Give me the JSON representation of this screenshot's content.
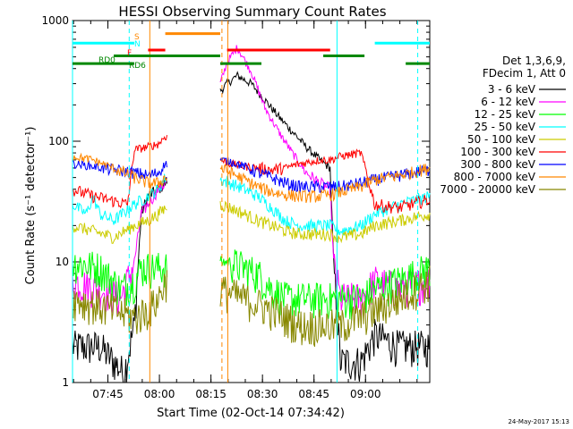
{
  "chart_data": {
    "type": "line",
    "title": "HESSI Observing Summary Count Rates",
    "xlabel": "Start Time (02-Oct-14 07:34:42)",
    "ylabel": "Count Rate (s⁻¹ detector⁻¹)",
    "yscale": "log",
    "ylim": [
      1,
      1000
    ],
    "xlim_minutes": [
      0,
      104
    ],
    "x_ticks": [
      {
        "label": "07:45",
        "t": 10.3
      },
      {
        "label": "08:00",
        "t": 25.3
      },
      {
        "label": "08:15",
        "t": 40.3
      },
      {
        "label": "08:30",
        "t": 55.3
      },
      {
        "label": "08:45",
        "t": 70.3
      },
      {
        "label": "09:00",
        "t": 85.3
      }
    ],
    "y_ticks": [
      {
        "label": "1",
        "v": 1
      },
      {
        "label": "10",
        "v": 10
      },
      {
        "label": "100",
        "v": 100
      },
      {
        "label": "1000",
        "v": 1000
      }
    ],
    "legend_header": [
      "Det 1,3,6,9,",
      "FDecim 1, Att 0"
    ],
    "series": [
      {
        "name": "3 - 6 keV",
        "color": "#000000",
        "points": [
          [
            0,
            2
          ],
          [
            8,
            2
          ],
          [
            12,
            1.5
          ],
          [
            15,
            1.2
          ],
          [
            18,
            3
          ],
          [
            20,
            25
          ],
          [
            22,
            35
          ],
          [
            25,
            40
          ],
          [
            27,
            45
          ],
          [
            43,
            260
          ],
          [
            45,
            300
          ],
          [
            48,
            350
          ],
          [
            52,
            300
          ],
          [
            56,
            220
          ],
          [
            60,
            160
          ],
          [
            64,
            120
          ],
          [
            68,
            90
          ],
          [
            72,
            70
          ],
          [
            75,
            60
          ],
          [
            76,
            10
          ],
          [
            78,
            1.5
          ],
          [
            84,
            1.5
          ],
          [
            88,
            2.5
          ],
          [
            95,
            2
          ],
          [
            104,
            2
          ]
        ]
      },
      {
        "name": "6 - 12 keV",
        "color": "#ff00ff",
        "points": [
          [
            0,
            7
          ],
          [
            8,
            6
          ],
          [
            14,
            5
          ],
          [
            18,
            10
          ],
          [
            20,
            25
          ],
          [
            22,
            30
          ],
          [
            25,
            40
          ],
          [
            27,
            45
          ],
          [
            43,
            300
          ],
          [
            45,
            450
          ],
          [
            48,
            600
          ],
          [
            52,
            380
          ],
          [
            56,
            190
          ],
          [
            60,
            120
          ],
          [
            64,
            80
          ],
          [
            68,
            55
          ],
          [
            72,
            45
          ],
          [
            75,
            40
          ],
          [
            76,
            10
          ],
          [
            78,
            5
          ],
          [
            84,
            5
          ],
          [
            88,
            7
          ],
          [
            95,
            6
          ],
          [
            104,
            7
          ]
        ]
      },
      {
        "name": "12 - 25 keV",
        "color": "#00ff00",
        "points": [
          [
            0,
            10
          ],
          [
            8,
            9
          ],
          [
            14,
            6
          ],
          [
            18,
            7
          ],
          [
            20,
            9
          ],
          [
            25,
            9
          ],
          [
            27,
            9
          ],
          [
            43,
            10
          ],
          [
            46,
            10
          ],
          [
            50,
            9
          ],
          [
            54,
            8
          ],
          [
            58,
            6
          ],
          [
            62,
            5
          ],
          [
            66,
            5
          ],
          [
            72,
            5
          ],
          [
            75,
            5
          ],
          [
            78,
            5
          ],
          [
            84,
            5
          ],
          [
            88,
            6
          ],
          [
            95,
            7
          ],
          [
            104,
            9
          ]
        ]
      },
      {
        "name": "25 - 50 keV",
        "color": "#00ffff",
        "points": [
          [
            0,
            30
          ],
          [
            4,
            25
          ],
          [
            6,
            35
          ],
          [
            8,
            25
          ],
          [
            12,
            22
          ],
          [
            18,
            30
          ],
          [
            22,
            35
          ],
          [
            25,
            40
          ],
          [
            27,
            50
          ],
          [
            43,
            48
          ],
          [
            46,
            45
          ],
          [
            50,
            40
          ],
          [
            54,
            35
          ],
          [
            58,
            28
          ],
          [
            62,
            22
          ],
          [
            66,
            20
          ],
          [
            72,
            20
          ],
          [
            75,
            20
          ],
          [
            78,
            18
          ],
          [
            84,
            20
          ],
          [
            88,
            25
          ],
          [
            95,
            30
          ],
          [
            104,
            35
          ]
        ]
      },
      {
        "name": "50 - 100 keV",
        "color": "#cccc00",
        "points": [
          [
            0,
            20
          ],
          [
            6,
            18
          ],
          [
            12,
            16
          ],
          [
            18,
            20
          ],
          [
            22,
            22
          ],
          [
            25,
            25
          ],
          [
            27,
            28
          ],
          [
            43,
            30
          ],
          [
            46,
            28
          ],
          [
            50,
            25
          ],
          [
            54,
            22
          ],
          [
            58,
            20
          ],
          [
            62,
            18
          ],
          [
            66,
            17
          ],
          [
            72,
            17
          ],
          [
            75,
            17
          ],
          [
            78,
            16
          ],
          [
            84,
            17
          ],
          [
            88,
            20
          ],
          [
            95,
            22
          ],
          [
            104,
            25
          ]
        ]
      },
      {
        "name": "100 - 300 keV",
        "color": "#ff0000",
        "points": [
          [
            0,
            40
          ],
          [
            6,
            35
          ],
          [
            12,
            32
          ],
          [
            16,
            30
          ],
          [
            18,
            85
          ],
          [
            22,
            90
          ],
          [
            25,
            95
          ],
          [
            27,
            110
          ],
          [
            43,
            70
          ],
          [
            46,
            65
          ],
          [
            50,
            62
          ],
          [
            54,
            60
          ],
          [
            58,
            58
          ],
          [
            62,
            60
          ],
          [
            66,
            65
          ],
          [
            72,
            70
          ],
          [
            75,
            70
          ],
          [
            78,
            75
          ],
          [
            84,
            80
          ],
          [
            88,
            30
          ],
          [
            95,
            28
          ],
          [
            104,
            33
          ]
        ]
      },
      {
        "name": "300 - 800 keV",
        "color": "#0000ff",
        "points": [
          [
            0,
            65
          ],
          [
            6,
            62
          ],
          [
            12,
            58
          ],
          [
            18,
            55
          ],
          [
            22,
            52
          ],
          [
            25,
            55
          ],
          [
            27,
            65
          ],
          [
            43,
            70
          ],
          [
            46,
            68
          ],
          [
            50,
            62
          ],
          [
            54,
            55
          ],
          [
            58,
            50
          ],
          [
            62,
            45
          ],
          [
            66,
            42
          ],
          [
            72,
            42
          ],
          [
            75,
            42
          ],
          [
            78,
            42
          ],
          [
            84,
            45
          ],
          [
            88,
            48
          ],
          [
            95,
            52
          ],
          [
            104,
            58
          ]
        ]
      },
      {
        "name": "800 - 7000 keV",
        "color": "#ff8800",
        "points": [
          [
            0,
            75
          ],
          [
            6,
            70
          ],
          [
            12,
            60
          ],
          [
            18,
            50
          ],
          [
            22,
            45
          ],
          [
            25,
            45
          ],
          [
            27,
            50
          ],
          [
            43,
            60
          ],
          [
            46,
            55
          ],
          [
            50,
            48
          ],
          [
            54,
            42
          ],
          [
            58,
            38
          ],
          [
            62,
            36
          ],
          [
            66,
            35
          ],
          [
            72,
            35
          ],
          [
            75,
            36
          ],
          [
            78,
            38
          ],
          [
            84,
            42
          ],
          [
            88,
            48
          ],
          [
            95,
            52
          ],
          [
            104,
            60
          ]
        ]
      },
      {
        "name": "7000 - 20000 keV",
        "color": "#888800",
        "points": [
          [
            0,
            5
          ],
          [
            6,
            4.5
          ],
          [
            12,
            4
          ],
          [
            18,
            3.5
          ],
          [
            22,
            4
          ],
          [
            25,
            5
          ],
          [
            27,
            7
          ],
          [
            43,
            6
          ],
          [
            46,
            5.5
          ],
          [
            50,
            5
          ],
          [
            54,
            4.5
          ],
          [
            58,
            4
          ],
          [
            62,
            3.5
          ],
          [
            66,
            3
          ],
          [
            72,
            3
          ],
          [
            75,
            3
          ],
          [
            78,
            3
          ],
          [
            84,
            3.5
          ],
          [
            88,
            4
          ],
          [
            95,
            5
          ],
          [
            104,
            7
          ]
        ]
      }
    ],
    "flags": [
      {
        "label": "S",
        "color": "#ff8800"
      },
      {
        "label": "N",
        "color": "#00ffff"
      },
      {
        "label": "F",
        "color": "#ff0000"
      },
      {
        "label": "RD0",
        "color": "#008800"
      },
      {
        "label": "RD6",
        "color": "#008800"
      }
    ],
    "flag_segments": [
      {
        "color": "#00ffff",
        "level": 650,
        "t0": 0,
        "t1": 18
      },
      {
        "color": "#00ffff",
        "level": 650,
        "t0": 88,
        "t1": 104
      },
      {
        "color": "#ff8800",
        "level": 780,
        "t0": 27,
        "t1": 43
      },
      {
        "color": "#ff0000",
        "level": 570,
        "t0": 22,
        "t1": 27
      },
      {
        "color": "#ff0000",
        "level": 570,
        "t0": 45,
        "t1": 75
      },
      {
        "color": "#008800",
        "level": 510,
        "t0": 12,
        "t1": 43
      },
      {
        "color": "#008800",
        "level": 510,
        "t0": 73,
        "t1": 85
      },
      {
        "color": "#008800",
        "level": 440,
        "t0": 0,
        "t1": 18
      },
      {
        "color": "#008800",
        "level": 440,
        "t0": 43,
        "t1": 55
      },
      {
        "color": "#008800",
        "level": 440,
        "t0": 97,
        "t1": 104
      }
    ],
    "markers": [
      {
        "color": "#00ffff",
        "t": 0,
        "style": "solid"
      },
      {
        "color": "#00ffff",
        "t": 16.5,
        "style": "dashed"
      },
      {
        "color": "#ff8800",
        "t": 22.5,
        "style": "solid"
      },
      {
        "color": "#ff8800",
        "t": 43.5,
        "style": "dashed"
      },
      {
        "color": "#ff8800",
        "t": 45.2,
        "style": "solid"
      },
      {
        "color": "#00ffff",
        "t": 77,
        "style": "solid"
      },
      {
        "color": "#00ffff",
        "t": 100.5,
        "style": "dashed"
      }
    ]
  },
  "footer": {
    "timestamp": "24-May-2017 15:13"
  }
}
